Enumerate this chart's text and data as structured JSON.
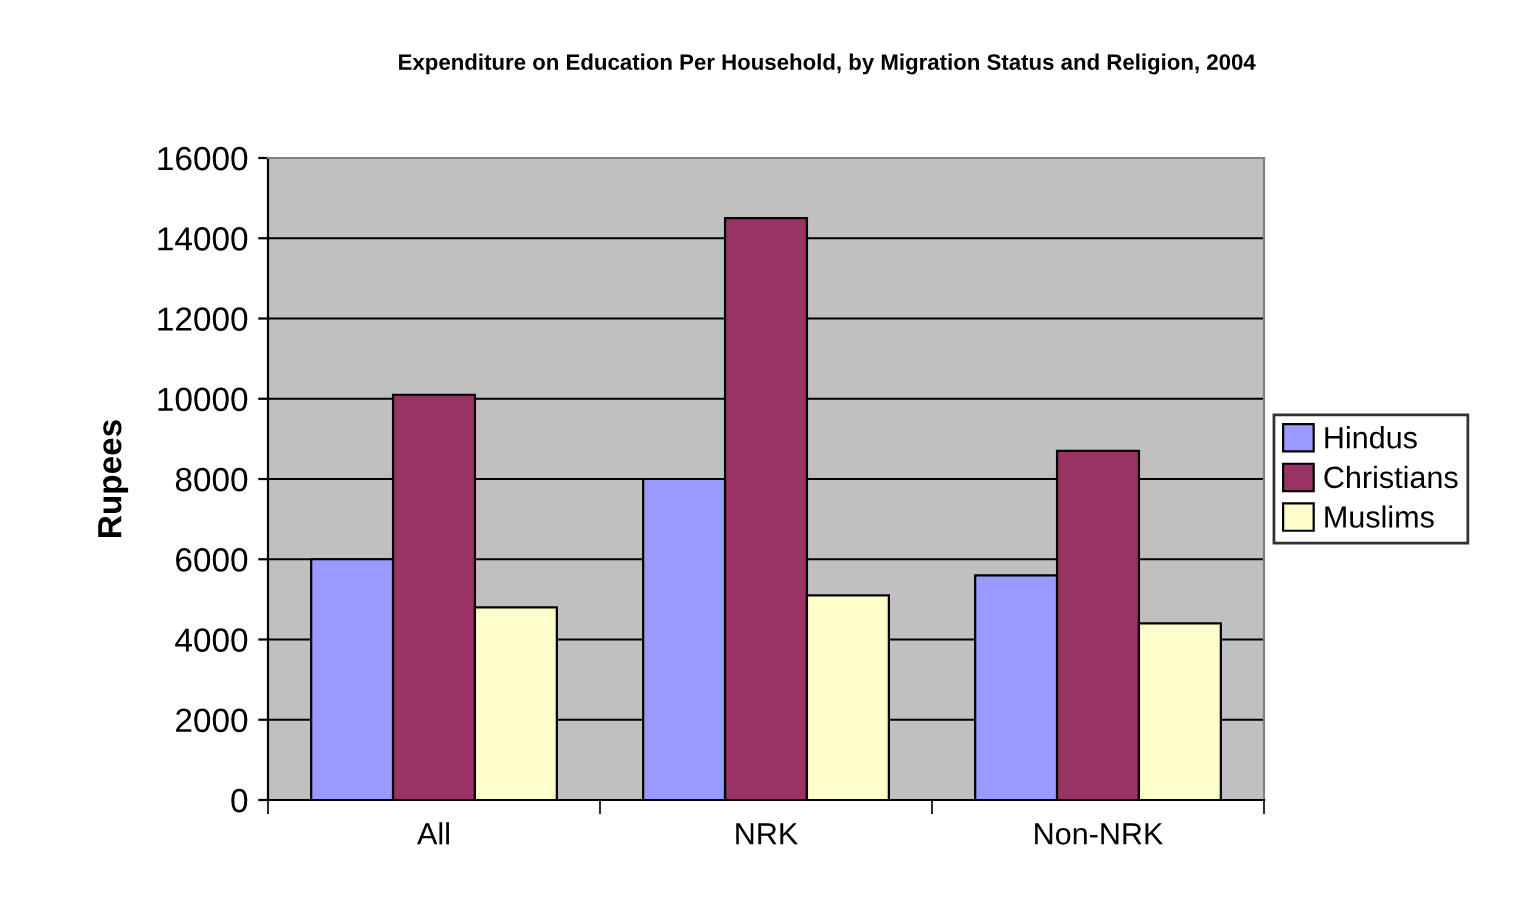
{
  "chart_data": {
    "type": "bar",
    "title": "Expenditure on Education Per Household, by Migration Status and Religion, 2004",
    "ylabel": "Rupees",
    "categories": [
      "All",
      "NRK",
      "Non-NRK"
    ],
    "series": [
      {
        "name": "Hindus",
        "color": "#9999ff",
        "values": [
          6000,
          8000,
          5600
        ]
      },
      {
        "name": "Christians",
        "color": "#993366",
        "values": [
          10100,
          14500,
          8700
        ]
      },
      {
        "name": "Muslims",
        "color": "#ffffcc",
        "values": [
          4800,
          5100,
          4400
        ]
      }
    ],
    "ylim": [
      0,
      16000
    ],
    "yticks": [
      0,
      2000,
      4000,
      6000,
      8000,
      10000,
      12000,
      14000,
      16000
    ],
    "grid": "y",
    "legend": "right"
  }
}
